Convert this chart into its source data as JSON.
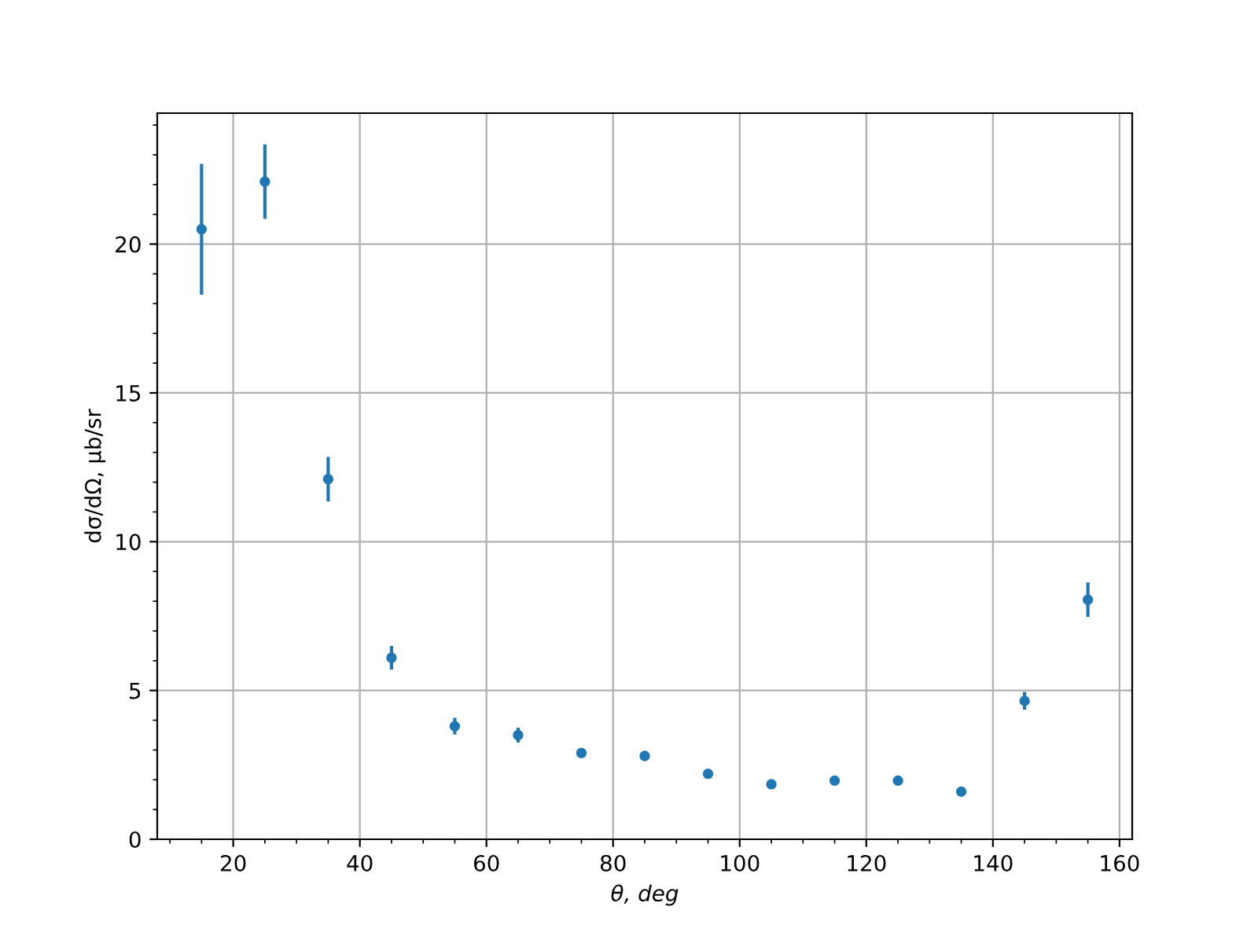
{
  "chart_data": {
    "type": "scatter",
    "xlabel": "θ, deg",
    "ylabel": "dσ/dΩ, μb/sr",
    "x": [
      15,
      25,
      35,
      45,
      55,
      65,
      75,
      85,
      95,
      105,
      115,
      125,
      135,
      145,
      155
    ],
    "values": [
      20.5,
      22.1,
      12.1,
      6.1,
      3.8,
      3.5,
      2.9,
      2.8,
      2.2,
      1.85,
      1.97,
      1.97,
      1.6,
      4.65,
      8.05
    ],
    "errors": [
      2.2,
      1.25,
      0.75,
      0.4,
      0.28,
      0.25,
      0.14,
      0.15,
      0.12,
      0.05,
      0.1,
      0.15,
      0.1,
      0.3,
      0.58
    ],
    "color": "#1f77b4",
    "marker": "circle",
    "xlim": [
      8,
      162
    ],
    "xticks": [
      {
        "value": 10,
        "label": null
      },
      {
        "value": 15,
        "label": null
      },
      20,
      {
        "value": 25,
        "label": null
      },
      {
        "value": 30,
        "label": null
      },
      {
        "value": 35,
        "label": null
      },
      40,
      {
        "value": 45,
        "label": null
      },
      {
        "value": 50,
        "label": null
      },
      {
        "value": 55,
        "label": null
      },
      60,
      {
        "value": 65,
        "label": null
      },
      {
        "value": 70,
        "label": null
      },
      {
        "value": 75,
        "label": null
      },
      80,
      {
        "value": 85,
        "label": null
      },
      {
        "value": 90,
        "label": null
      },
      {
        "value": 95,
        "label": null
      },
      100,
      {
        "value": 105,
        "label": null
      },
      {
        "value": 110,
        "label": null
      },
      {
        "value": 115,
        "label": null
      },
      120,
      {
        "value": 125,
        "label": null
      },
      {
        "value": 130,
        "label": null
      },
      {
        "value": 135,
        "label": null
      },
      140,
      {
        "value": 145,
        "label": null
      },
      {
        "value": 150,
        "label": null
      },
      {
        "value": 155,
        "label": null
      },
      160
    ],
    "ylim": [
      0,
      24.4
    ],
    "yticks": [
      0,
      {
        "value": 1,
        "label": null
      },
      {
        "value": 2,
        "label": null
      },
      {
        "value": 3,
        "label": null
      },
      {
        "value": 4,
        "label": null
      },
      5,
      {
        "value": 6,
        "label": null
      },
      {
        "value": 7,
        "label": null
      },
      {
        "value": 8,
        "label": null
      },
      {
        "value": 9,
        "label": null
      },
      10,
      {
        "value": 11,
        "label": null
      },
      {
        "value": 12,
        "label": null
      },
      {
        "value": 13,
        "label": null
      },
      {
        "value": 14,
        "label": null
      },
      15,
      {
        "value": 16,
        "label": null
      },
      {
        "value": 17,
        "label": null
      },
      {
        "value": 18,
        "label": null
      },
      {
        "value": 19,
        "label": null
      },
      20,
      {
        "value": 21,
        "label": null
      },
      {
        "value": 22,
        "label": null
      },
      {
        "value": 23,
        "label": null
      },
      {
        "value": 24,
        "label": null
      }
    ],
    "grid": true
  }
}
